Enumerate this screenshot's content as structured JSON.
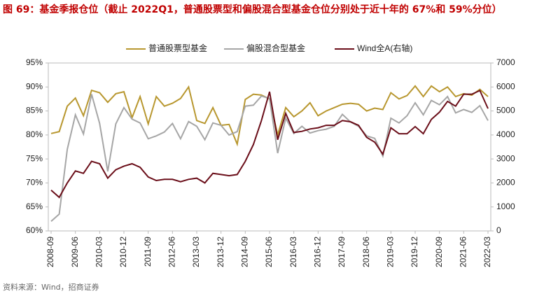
{
  "chart_data": {
    "type": "line",
    "title": "图 69：基金季报仓位（截止 2022Q1，普通股票型和偏股混合型基金仓位分别处于近十年的 67%和 59%分位）",
    "source": "资料来源：Wind，招商证券",
    "categories": [
      "2008-09",
      null,
      null,
      "2009-06",
      null,
      null,
      "2010-03",
      null,
      null,
      "2010-12",
      null,
      null,
      "2011-09",
      null,
      null,
      "2012-06",
      null,
      null,
      "2013-03",
      null,
      null,
      "2013-12",
      null,
      null,
      "2014-09",
      null,
      null,
      "2015-06",
      null,
      null,
      "2016-03",
      null,
      null,
      "2016-12",
      null,
      null,
      "2017-09",
      null,
      null,
      "2018-06",
      null,
      null,
      "2019-03",
      null,
      null,
      "2019-12",
      null,
      null,
      "2020-09",
      null,
      null,
      "2021-06",
      null,
      null,
      "2022-03"
    ],
    "series": [
      {
        "name": "普通股票型基金",
        "color": "#b8972f",
        "values": [
          80.3,
          80.7,
          86,
          87.7,
          84,
          89.3,
          88.8,
          86.8,
          88.6,
          89,
          83.6,
          88,
          82.3,
          88,
          86,
          86.6,
          87.6,
          90,
          83,
          82.4,
          85.7,
          82,
          82.2,
          78.1,
          87.4,
          88.5,
          88.3,
          87.5,
          80,
          85.7,
          83.8,
          85,
          86.7,
          84,
          85,
          85.7,
          86.4,
          86.6,
          86.4,
          85,
          85.6,
          85.3,
          88.8,
          87.5,
          88.2,
          90.2,
          88,
          90.2,
          89,
          90,
          88,
          88.6,
          88.3,
          89.5,
          88
        ]
      },
      {
        "name": "偏股混合型基金",
        "color": "#a6a6a6",
        "values": [
          62,
          63.5,
          77,
          84.2,
          80.2,
          88.5,
          82.4,
          72.4,
          82.3,
          85.7,
          83.3,
          82.5,
          79.2,
          79.8,
          80.6,
          82.4,
          79.2,
          82.8,
          81.8,
          79,
          82.5,
          82,
          80,
          80.7,
          86,
          86.2,
          88.1,
          87.6,
          76.2,
          83.5,
          80.3,
          81.8,
          80.4,
          80.9,
          81.2,
          81.8,
          84.3,
          82.7,
          81.8,
          79.8,
          79.3,
          75.6,
          83.5,
          82.5,
          84,
          86.7,
          84.2,
          87.2,
          86.3,
          88,
          84.6,
          85.3,
          84.7,
          86.1,
          83
        ]
      },
      {
        "name": "Wind全A(右轴)",
        "color": "#6b0f1a",
        "axis": "y2",
        "values": [
          1700,
          1400,
          2000,
          2500,
          2400,
          2900,
          2800,
          2200,
          2550,
          2700,
          2800,
          2650,
          2250,
          2100,
          2150,
          2150,
          2050,
          2150,
          2200,
          2000,
          2400,
          2350,
          2300,
          2350,
          2900,
          3600,
          4600,
          5800,
          3800,
          4900,
          4100,
          4150,
          4250,
          4300,
          4400,
          4400,
          4600,
          4550,
          4400,
          3900,
          3700,
          3200,
          4300,
          4050,
          4050,
          4350,
          4050,
          4650,
          4950,
          5400,
          5200,
          5700,
          5700,
          5850,
          5100
        ]
      }
    ],
    "ylim": [
      60,
      95
    ],
    "yticks": [
      {
        "value": 60,
        "label": "60%"
      },
      {
        "value": 65,
        "label": "65%"
      },
      {
        "value": 70,
        "label": "70%"
      },
      {
        "value": 75,
        "label": "75%"
      },
      {
        "value": 80,
        "label": "80%"
      },
      {
        "value": 85,
        "label": "85%"
      },
      {
        "value": 90,
        "label": "90%"
      },
      {
        "value": 95,
        "label": "95%"
      }
    ],
    "y2lim": [
      0,
      7000
    ],
    "y2ticks": [
      0,
      1000,
      2000,
      3000,
      4000,
      5000,
      6000,
      7000
    ],
    "legend": "top"
  }
}
